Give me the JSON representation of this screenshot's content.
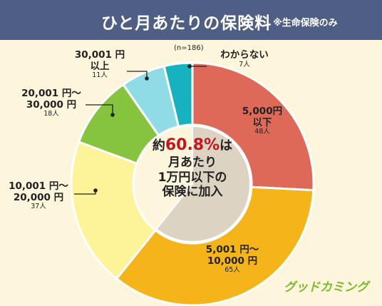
{
  "header": {
    "title": "ひと月あたりの保険料",
    "subtitle": "※生命保険のみ"
  },
  "sample_note": "(n=186)",
  "center": {
    "prefix": "約",
    "percent": "60.8%",
    "suffix": "は",
    "line2": "月あたり",
    "line3": "1万円以下の",
    "line4": "保険に加入"
  },
  "labels": {
    "s0": {
      "l1": "5,000円",
      "l2": "以下",
      "count": "48人"
    },
    "s1": {
      "l1": "5,001 円～",
      "l2": "10,000 円",
      "count": "65人"
    },
    "s2": {
      "l1": "10,001 円～",
      "l2": "20,000 円",
      "count": "37人"
    },
    "s3": {
      "l1": "20,001 円～",
      "l2": "30,000 円",
      "count": "18人"
    },
    "s4": {
      "l1": "30,001 円",
      "l2": "以上",
      "count": "11人"
    },
    "s5": {
      "l1": "わからない",
      "count": "7人"
    }
  },
  "logo": "グッドカミング",
  "colors": {
    "header": "#4e5e84",
    "background": "#fdf6dc",
    "highlight": "#c4161c",
    "center_fill": "#ddd3c2"
  },
  "chart_data": {
    "type": "pie",
    "title": "ひと月あたりの保険料",
    "subtitle": "※生命保険のみ",
    "n": 186,
    "categories": [
      "5,000円以下",
      "5,001円～10,000円",
      "10,001円～20,000円",
      "20,001円～30,000円",
      "30,001円以上",
      "わからない"
    ],
    "values": [
      48,
      65,
      37,
      18,
      11,
      7
    ],
    "colors": [
      "#df6958",
      "#f4b41a",
      "#fdf49a",
      "#86c440",
      "#8fdbe6",
      "#17b2bf"
    ],
    "highlight": {
      "text": "約60.8%は月あたり1万円以下の保険に加入",
      "percent": 60.8
    }
  }
}
